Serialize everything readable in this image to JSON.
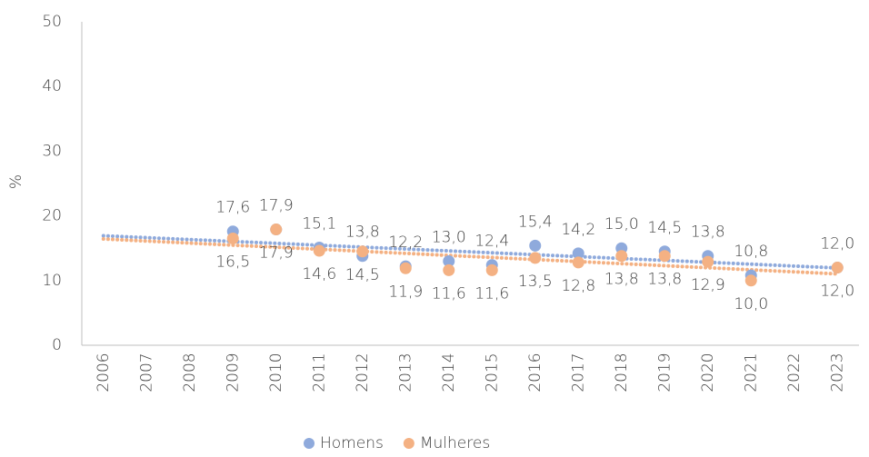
{
  "chart_data": {
    "type": "scatter",
    "y_label": "%",
    "categories": [
      "2006",
      "2007",
      "2008",
      "2009",
      "2010",
      "2011",
      "2012",
      "2013",
      "2014",
      "2015",
      "2016",
      "2017",
      "2018",
      "2019",
      "2020",
      "2021",
      "2022",
      "2023"
    ],
    "ylim": [
      0,
      50
    ],
    "yticks": [
      0,
      10,
      20,
      30,
      40,
      50
    ],
    "grid": false,
    "trendline": true,
    "legend": "bottom",
    "series": [
      {
        "name": "Homens",
        "color": "#8faadc",
        "label_position": "above",
        "values": [
          null,
          null,
          null,
          17.6,
          17.9,
          15.1,
          13.8,
          12.2,
          13.0,
          12.4,
          15.4,
          14.2,
          15.0,
          14.5,
          13.8,
          10.8,
          null,
          12.0
        ],
        "value_labels": [
          null,
          null,
          null,
          "17,6",
          "17,9",
          "15,1",
          "13,8",
          "12,2",
          "13,0",
          "12,4",
          "15,4",
          "14,2",
          "15,0",
          "14,5",
          "13,8",
          "10,8",
          null,
          "12,0"
        ]
      },
      {
        "name": "Mulheres",
        "color": "#f4b183",
        "label_position": "below",
        "values": [
          null,
          null,
          null,
          16.5,
          17.9,
          14.6,
          14.5,
          11.9,
          11.6,
          11.6,
          13.5,
          12.8,
          13.8,
          13.8,
          12.9,
          10.0,
          null,
          12.0
        ],
        "value_labels": [
          null,
          null,
          null,
          "16,5",
          "17,9",
          "14,6",
          "14,5",
          "11,9",
          "11,6",
          "11,6",
          "13,5",
          "12,8",
          "13,8",
          "13,8",
          "12,9",
          "10,0",
          null,
          "12,0"
        ]
      }
    ]
  }
}
